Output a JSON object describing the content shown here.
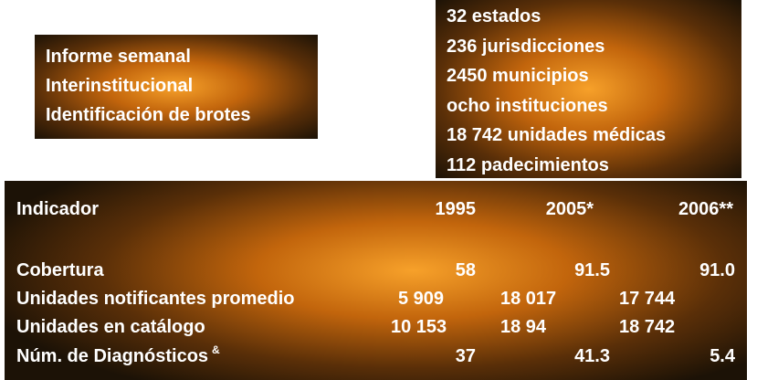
{
  "summary_box": {
    "lines": [
      "Informe semanal",
      "Interinstitucional",
      "Identificación de brotes"
    ]
  },
  "coverage_box": {
    "lines": [
      "32 estados",
      "236 jurisdicciones",
      "2450 municipios",
      "ocho instituciones",
      "18 742 unidades médicas",
      "112 padecimientos"
    ]
  },
  "table": {
    "header": [
      "Indicador",
      "1995",
      "2005*",
      "2006**"
    ],
    "rows": [
      {
        "label": "Cobertura",
        "values": [
          "58",
          "91.5",
          "91.0"
        ]
      },
      {
        "label": "Unidades notificantes promedio",
        "values": [
          "5 909",
          "18 017",
          "17 744"
        ]
      },
      {
        "label": "Unidades en catálogo",
        "values": [
          "10 153",
          "18 94",
          "18 742"
        ]
      },
      {
        "label": "Núm. de Diagnósticos",
        "note": "&",
        "values": [
          "37",
          "41.3",
          "5.4"
        ]
      }
    ]
  }
}
